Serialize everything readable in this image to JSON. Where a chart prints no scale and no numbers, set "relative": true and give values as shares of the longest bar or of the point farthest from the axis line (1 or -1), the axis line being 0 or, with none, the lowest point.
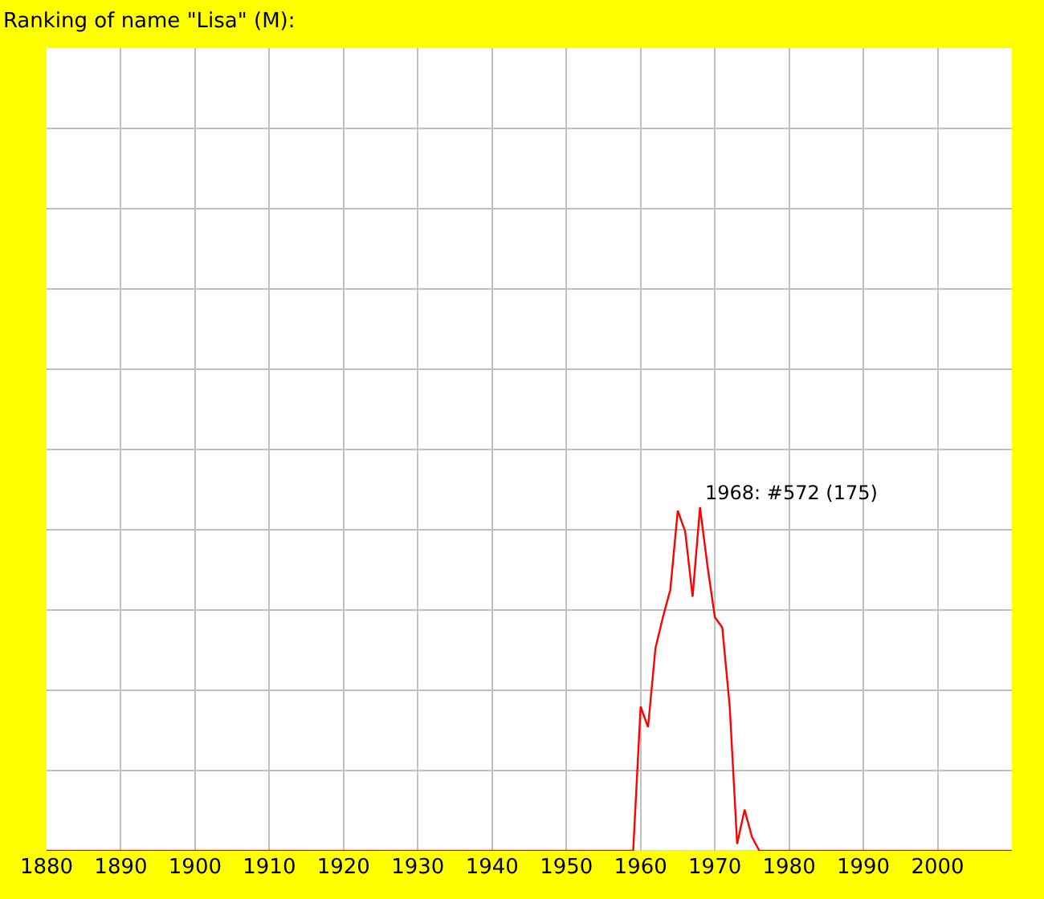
{
  "chart_data": {
    "type": "line",
    "title": "Ranking of name \"Lisa\" (M):",
    "relative": true,
    "x": [
      1880,
      1959,
      1960,
      1961,
      1962,
      1963,
      1964,
      1965,
      1966,
      1967,
      1968,
      1969,
      1970,
      1971,
      1972,
      1973,
      1974,
      1975,
      1976,
      2010
    ],
    "series": [
      {
        "color": "#ff0000",
        "values": [
          0,
          0,
          0.42,
          0.36,
          0.59,
          0.68,
          0.76,
          0.99,
          0.93,
          0.74,
          1,
          0.83,
          0.68,
          0.65,
          0.42,
          0.02,
          0.12,
          0.04,
          0,
          0
        ]
      }
    ],
    "xlim": [
      1880,
      2010
    ],
    "xticks": [
      1880,
      1890,
      1900,
      1910,
      1920,
      1930,
      1940,
      1950,
      1960,
      1970,
      1980,
      1990,
      2000
    ],
    "annotations": [
      {
        "text": "1968: #572 (175)",
        "x": 1968,
        "y": 1
      }
    ],
    "grid": true,
    "marker": "none",
    "line_style": "solid"
  }
}
